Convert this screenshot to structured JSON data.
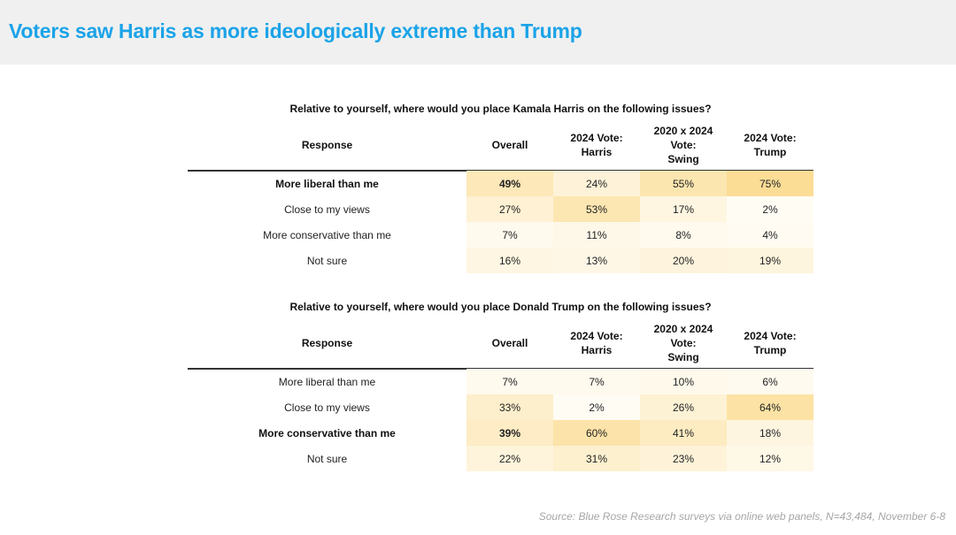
{
  "title": "Voters saw Harris as more ideologically extreme than Trump",
  "source": "Source: Blue Rose Research surveys via online web panels, N=43,484, November 6-8",
  "colors": {
    "title": "#1aa3e8",
    "header_bg": "#f0f0f0",
    "cell_high": "#fbdd96",
    "cell_low": "#fffdf7"
  },
  "columns": [
    "Response",
    "Overall",
    "2024 Vote:\nHarris",
    "2020 x 2024\nVote:\nSwing",
    "2024 Vote:\nTrump"
  ],
  "chart_data": [
    {
      "type": "table",
      "title": "Relative to yourself, where would you place Kamala Harris on the following issues?",
      "columns": [
        "Overall",
        "2024 Vote: Harris",
        "2020 x 2024 Vote: Swing",
        "2024 Vote: Trump"
      ],
      "rows": [
        {
          "label": "More liberal than me",
          "values": [
            "49%",
            "24%",
            "55%",
            "75%"
          ],
          "shade": [
            49,
            24,
            55,
            75
          ],
          "bold": true
        },
        {
          "label": "Close to my views",
          "values": [
            "27%",
            "53%",
            "17%",
            "2%"
          ],
          "shade": [
            27,
            53,
            17,
            2
          ],
          "bold": false
        },
        {
          "label": "More conservative than me",
          "values": [
            "7%",
            "11%",
            "8%",
            "4%"
          ],
          "shade": [
            7,
            11,
            8,
            4
          ],
          "bold": false
        },
        {
          "label": "Not sure",
          "values": [
            "16%",
            "13%",
            "20%",
            "19%"
          ],
          "shade": [
            16,
            13,
            20,
            19
          ],
          "bold": false
        }
      ]
    },
    {
      "type": "table",
      "title": "Relative to yourself, where would you place Donald Trump on the following issues?",
      "columns": [
        "Overall",
        "2024 Vote: Harris",
        "2020 x 2024 Vote: Swing",
        "2024 Vote: Trump"
      ],
      "rows": [
        {
          "label": "More liberal than me",
          "values": [
            "7%",
            "7%",
            "10%",
            "6%"
          ],
          "shade": [
            7,
            7,
            10,
            6
          ],
          "bold": false
        },
        {
          "label": "Close to my views",
          "values": [
            "33%",
            "2%",
            "26%",
            "64%"
          ],
          "shade": [
            33,
            2,
            26,
            64
          ],
          "bold": false
        },
        {
          "label": "More conservative than me",
          "values": [
            "39%",
            "60%",
            "41%",
            "18%"
          ],
          "shade": [
            39,
            60,
            41,
            18
          ],
          "bold": true
        },
        {
          "label": "Not sure",
          "values": [
            "22%",
            "31%",
            "23%",
            "12%"
          ],
          "shade": [
            22,
            31,
            23,
            12
          ],
          "bold": false
        }
      ]
    }
  ]
}
